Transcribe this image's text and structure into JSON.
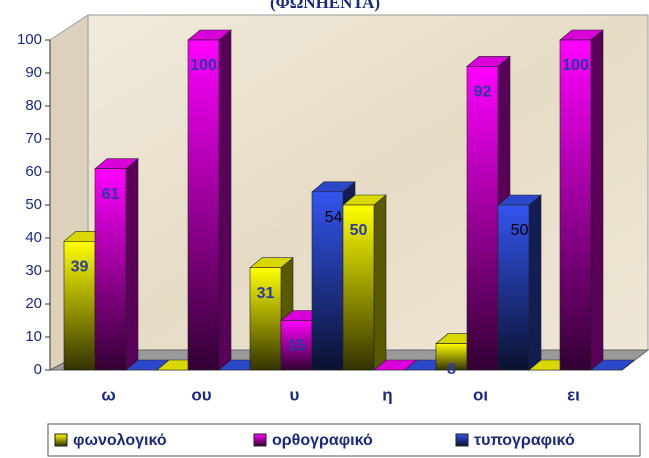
{
  "chart_data": {
    "type": "bar3d",
    "title": "(ΦΩΝΗΕΝΤΑ)",
    "categories": [
      "ω",
      "ου",
      "υ",
      "η",
      "οι",
      "ει"
    ],
    "series": [
      {
        "name": "φωνολογικό",
        "color": "#ffff00",
        "values": [
          39,
          0,
          31,
          50,
          8,
          0
        ]
      },
      {
        "name": "ορθογραφικό",
        "color": "#ff00ff",
        "values": [
          61,
          100,
          15,
          0,
          92,
          100
        ]
      },
      {
        "name": "τυπογραφικό",
        "color": "#3355ee",
        "values": [
          0,
          0,
          54,
          0,
          50,
          0
        ]
      }
    ],
    "ylim": [
      0,
      100
    ],
    "yticks": [
      0,
      10,
      20,
      30,
      40,
      50,
      60,
      70,
      80,
      90,
      100
    ],
    "legend": "bottom"
  }
}
